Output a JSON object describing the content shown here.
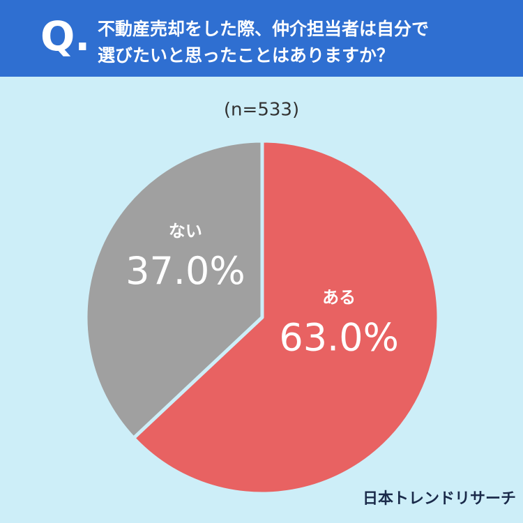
{
  "chart_data": {
    "type": "pie",
    "question_label": "Q.",
    "title": [
      "不動産売却をした際、仲介担当者は自分で",
      "選びたいと思ったことはありますか？"
    ],
    "subtitle": "(n=533)",
    "categories": [
      "ある",
      "ない"
    ],
    "values": [
      63.0,
      37.0
    ],
    "value_labels": [
      "63.0%",
      "37.0%"
    ],
    "colors": [
      "#e86262",
      "#a0a0a0"
    ],
    "source": "日本トレンドリサーチ"
  }
}
